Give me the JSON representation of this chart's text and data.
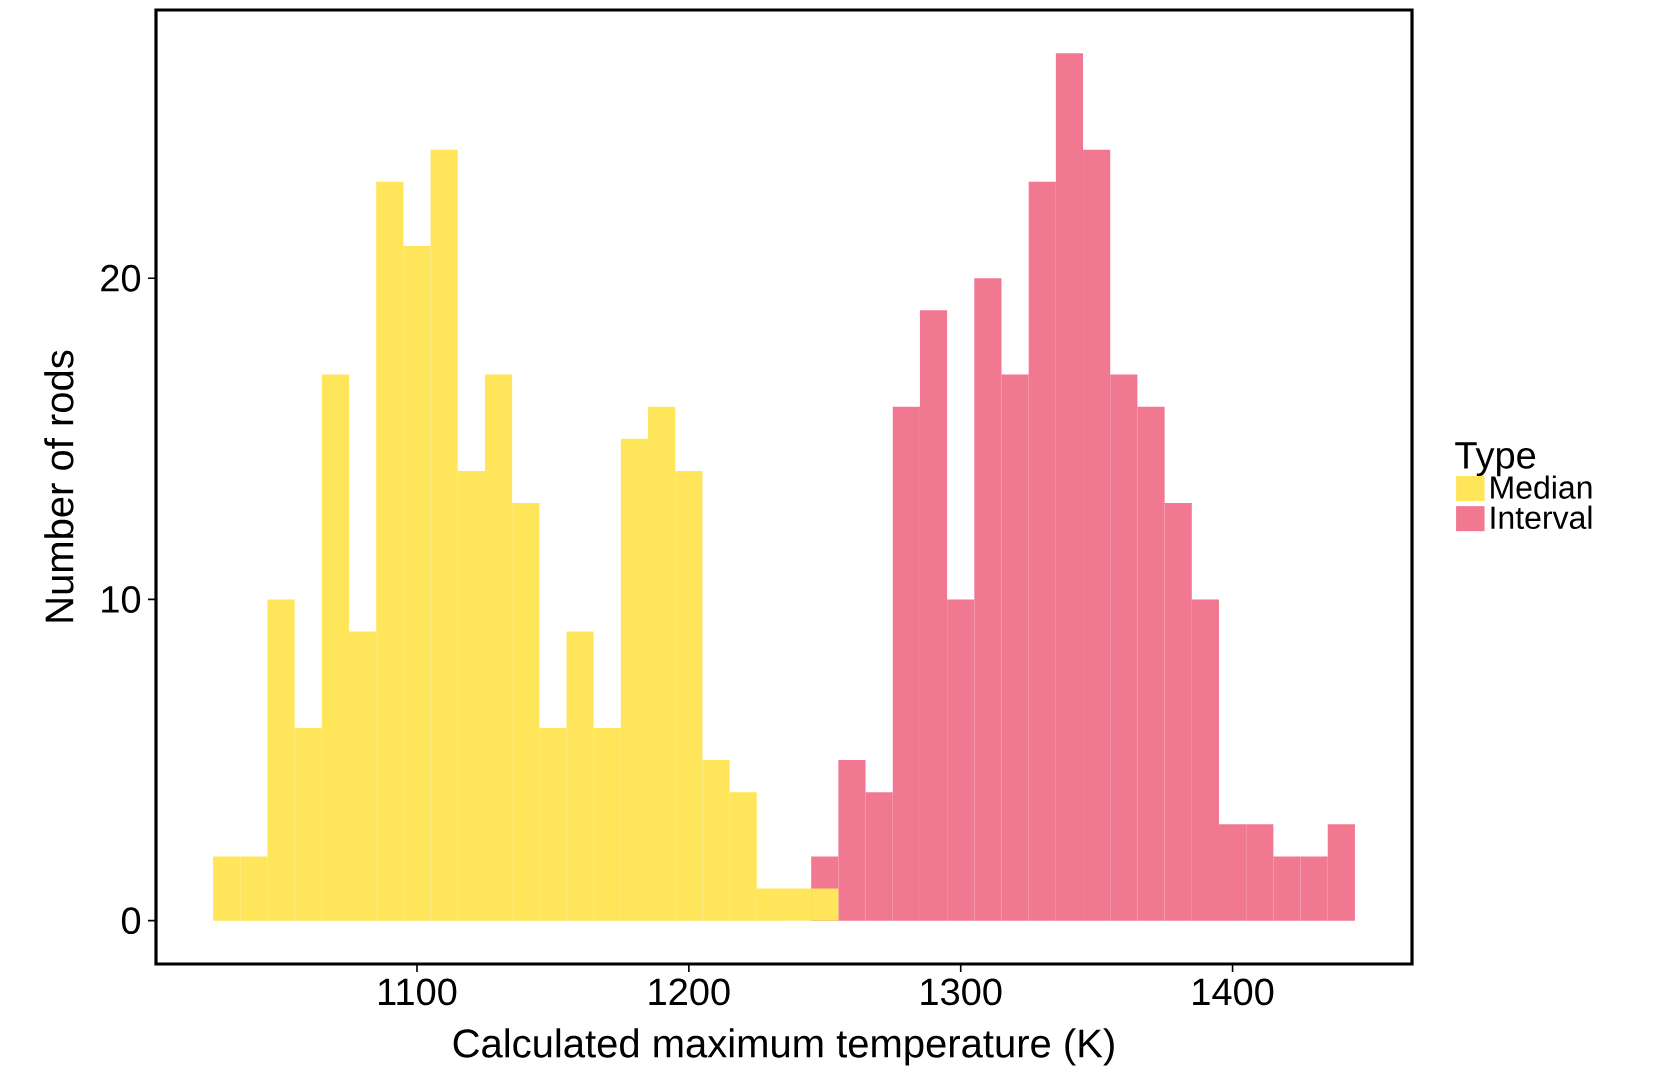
{
  "chart_data": {
    "type": "histogram",
    "xlabel": "Calculated maximum temperature (K)",
    "ylabel": "Number of rods",
    "legend_title": "Type",
    "legend": "right",
    "grid": false,
    "bins": [
      1025,
      1035,
      1045,
      1055,
      1065,
      1075,
      1085,
      1095,
      1105,
      1115,
      1125,
      1135,
      1145,
      1155,
      1165,
      1175,
      1185,
      1195,
      1205,
      1215,
      1225,
      1235,
      1245,
      1255,
      1265,
      1275,
      1285,
      1295,
      1305,
      1315,
      1325,
      1335,
      1345,
      1355,
      1365,
      1375,
      1385,
      1395,
      1405,
      1415,
      1425,
      1435,
      1445
    ],
    "xlim": [
      1004,
      1466
    ],
    "ylim": [
      -1.35,
      28.35
    ],
    "xticks": [
      {
        "value": 1100,
        "label": "1100"
      },
      {
        "value": 1200,
        "label": "1200"
      },
      {
        "value": 1300,
        "label": "1300"
      },
      {
        "value": 1400,
        "label": "1400"
      }
    ],
    "yticks": [
      {
        "value": 0,
        "label": "0"
      },
      {
        "value": 10,
        "label": "10"
      },
      {
        "value": 20,
        "label": "20"
      }
    ],
    "series": [
      {
        "name": "Median",
        "color": "#ffe55a",
        "values": [
          2,
          2,
          10,
          6,
          17,
          9,
          23,
          21,
          24,
          14,
          17,
          13,
          6,
          9,
          6,
          15,
          16,
          14,
          5,
          4,
          1,
          1,
          1,
          0,
          0,
          0,
          0,
          0,
          0,
          0,
          0,
          0,
          0,
          0,
          0,
          0,
          0,
          0,
          0,
          0,
          0,
          0
        ]
      },
      {
        "name": "Interval",
        "color": "#f07890",
        "values": [
          0,
          0,
          0,
          0,
          0,
          0,
          0,
          0,
          0,
          0,
          0,
          0,
          0,
          0,
          0,
          0,
          0,
          0,
          0,
          0,
          0,
          0,
          2,
          5,
          4,
          16,
          19,
          10,
          20,
          17,
          23,
          27,
          24,
          17,
          16,
          13,
          10,
          3,
          3,
          2,
          2,
          3
        ]
      }
    ]
  }
}
